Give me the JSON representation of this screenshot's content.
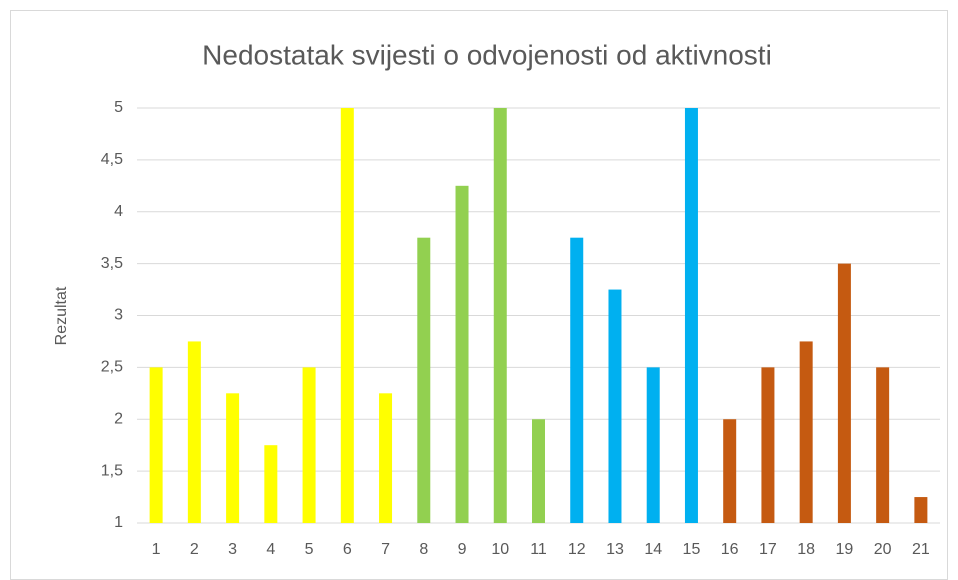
{
  "chart_data": {
    "type": "bar",
    "title": "Nedostatak svijesti o odvojenosti od aktivnosti",
    "y_label": "Rezultat",
    "categories": [
      "1",
      "2",
      "3",
      "4",
      "5",
      "6",
      "7",
      "8",
      "9",
      "10",
      "11",
      "12",
      "13",
      "14",
      "15",
      "16",
      "17",
      "18",
      "19",
      "20",
      "21"
    ],
    "values": [
      2.5,
      2.75,
      2.25,
      1.75,
      2.5,
      5,
      2.25,
      3.75,
      4.25,
      5,
      2,
      3.75,
      3.25,
      2.5,
      5,
      2,
      2.5,
      2.75,
      3.5,
      2.5,
      1.25
    ],
    "colors": [
      "#ffff00",
      "#ffff00",
      "#ffff00",
      "#ffff00",
      "#ffff00",
      "#ffff00",
      "#ffff00",
      "#92d050",
      "#92d050",
      "#92d050",
      "#92d050",
      "#00b0f0",
      "#00b0f0",
      "#00b0f0",
      "#00b0f0",
      "#c55a11",
      "#c55a11",
      "#c55a11",
      "#c55a11",
      "#c55a11",
      "#c55a11"
    ],
    "ylim": [
      1,
      5
    ],
    "yticks": [
      1,
      {
        "value": 1.5,
        "label": "1,5"
      },
      2,
      {
        "value": 2.5,
        "label": "2,5"
      },
      3,
      {
        "value": 3.5,
        "label": "3,5"
      },
      4,
      {
        "value": 4.5,
        "label": "4,5"
      },
      5
    ],
    "grid": true
  }
}
